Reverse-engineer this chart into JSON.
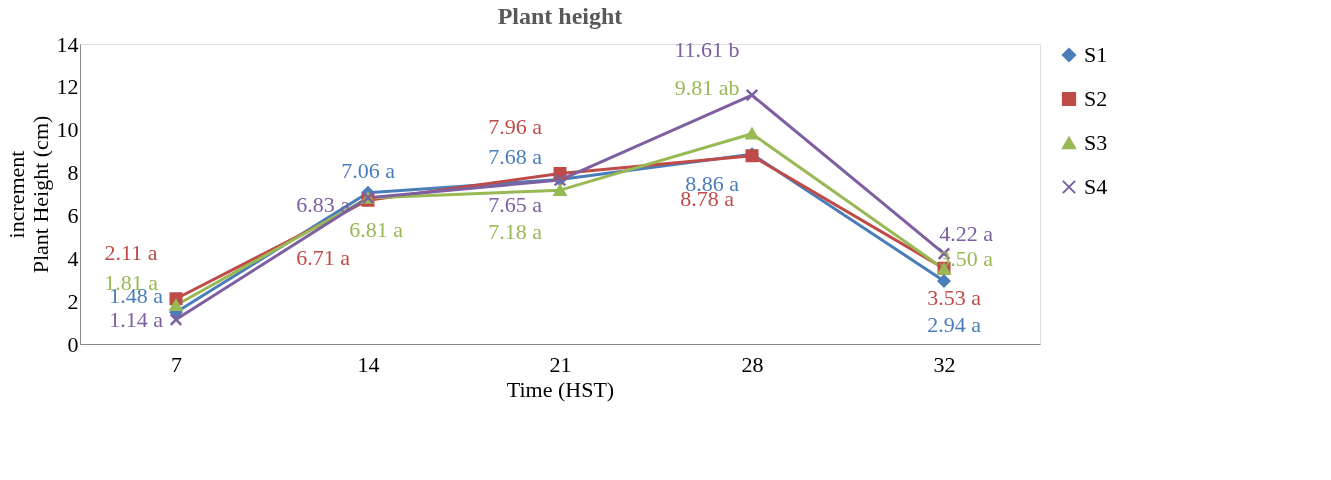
{
  "chart_data": {
    "type": "line",
    "title": "Plant height",
    "xlabel": "Time (HST)",
    "ylabel": "increment\nPlant Height (cm)",
    "categories": [
      "7",
      "14",
      "21",
      "28",
      "32"
    ],
    "ylim": [
      0,
      14
    ],
    "yticks": [
      0,
      2,
      4,
      6,
      8,
      10,
      12,
      14
    ],
    "grid": false,
    "legend": "right",
    "series": [
      {
        "name": "S1",
        "color": "#4a7ebb",
        "marker": "diamond",
        "values": [
          1.48,
          7.06,
          7.68,
          8.86,
          2.94
        ],
        "value_labels": [
          "1.48 a",
          "7.06 a",
          "7.68 a",
          "8.86 a",
          "2.94 a"
        ]
      },
      {
        "name": "S2",
        "color": "#be4b48",
        "marker": "square",
        "values": [
          2.11,
          6.71,
          7.96,
          8.78,
          3.53
        ],
        "value_labels": [
          "2.11 a",
          "6.71 a",
          "7.96 a",
          "8.78 a",
          "3.53 a"
        ]
      },
      {
        "name": "S3",
        "color": "#98b954",
        "marker": "triangle",
        "values": [
          1.81,
          6.81,
          7.18,
          9.81,
          3.5
        ],
        "value_labels": [
          "1.81 a",
          "6.81 a",
          "7.18 a",
          "9.81 ab",
          "3.50 a"
        ]
      },
      {
        "name": "S4",
        "color": "#7d60a0",
        "marker": "cross",
        "values": [
          1.14,
          6.83,
          7.65,
          11.61,
          4.22
        ],
        "value_labels": [
          "1.14 a",
          "6.83 a",
          "7.65 a",
          "11.61 b",
          "4.22 a"
        ]
      }
    ]
  }
}
